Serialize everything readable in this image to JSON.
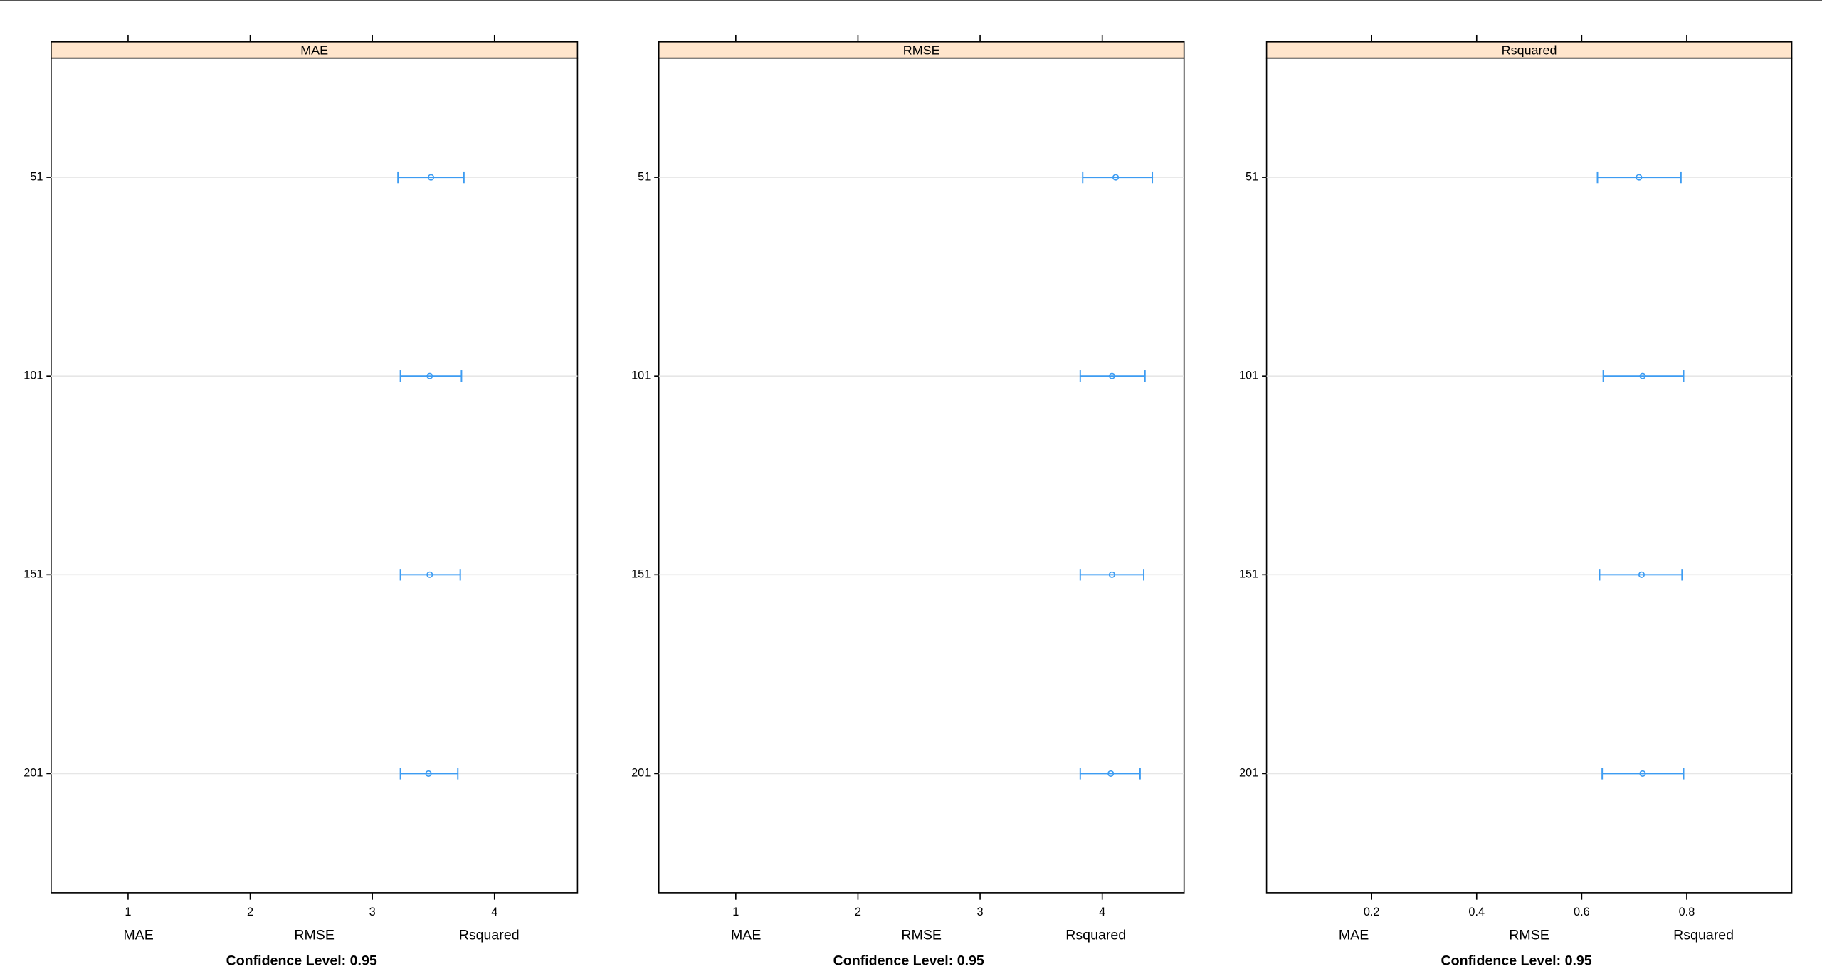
{
  "chart_data": [
    {
      "type": "errorbar",
      "title": "MAE",
      "categories": [
        "51",
        "101",
        "151",
        "201"
      ],
      "values": [
        3.48,
        3.47,
        3.47,
        3.46
      ],
      "lower": [
        3.21,
        3.23,
        3.23,
        3.23
      ],
      "upper": [
        3.75,
        3.73,
        3.72,
        3.7
      ],
      "color": "#3d9cf2",
      "xlim": [
        0.37,
        4.68
      ],
      "xticks": [
        1,
        2,
        3,
        4
      ],
      "xlabels": [
        "MAE",
        "RMSE",
        "Rsquared"
      ],
      "xlabel": "Confidence Level: 0.95"
    },
    {
      "type": "errorbar",
      "title": "RMSE",
      "categories": [
        "51",
        "101",
        "151",
        "201"
      ],
      "values": [
        4.11,
        4.08,
        4.08,
        4.07
      ],
      "lower": [
        3.84,
        3.82,
        3.82,
        3.82
      ],
      "upper": [
        4.41,
        4.35,
        4.34,
        4.31
      ],
      "color": "#3d9cf2",
      "xlim": [
        0.37,
        4.67
      ],
      "xticks": [
        1,
        2,
        3,
        4
      ],
      "xlabels": [
        "MAE",
        "RMSE",
        "Rsquared"
      ],
      "xlabel": "Confidence Level: 0.95"
    },
    {
      "type": "errorbar",
      "title": "Rsquared",
      "categories": [
        "51",
        "101",
        "151",
        "201"
      ],
      "values": [
        0.709,
        0.716,
        0.714,
        0.716
      ],
      "lower": [
        0.63,
        0.641,
        0.634,
        0.639
      ],
      "upper": [
        0.789,
        0.794,
        0.791,
        0.794
      ],
      "color": "#3d9cf2",
      "xlim": [
        0,
        1
      ],
      "xticks": [
        0.2,
        0.4,
        0.6,
        0.8
      ],
      "xlabels": [
        "MAE",
        "RMSE",
        "Rsquared"
      ],
      "xlabel": "Confidence Level: 0.95"
    }
  ]
}
